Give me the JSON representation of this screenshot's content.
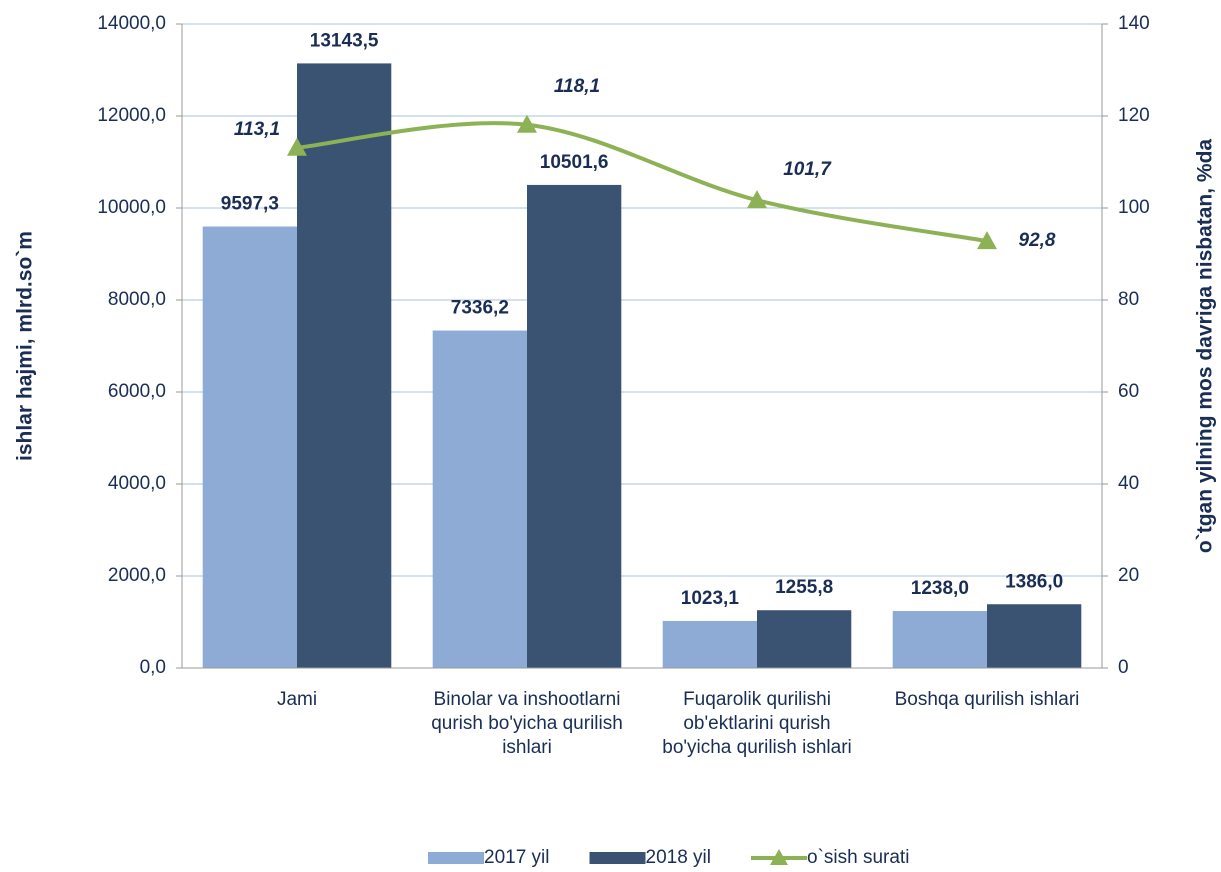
{
  "chart_data": {
    "type": "bar",
    "y_label": "ishlar hajmi, mlrd.so`m",
    "y2_label": "o`tgan yilning mos davriga nisbatan, %da",
    "categories": [
      "Jami",
      "Binolar va inshootlarni qurish bo'yicha qurilish ishlari",
      "Fuqarolik qurilishi ob'ektlarini qurish bo'yicha qurilish ishlari",
      "Boshqa qurilish ishlari"
    ],
    "series": [
      {
        "name": "2017 yil",
        "type": "bar",
        "color": "#8eabd5",
        "values": [
          9597.3,
          7336.2,
          1023.1,
          1238.0
        ],
        "value_labels": [
          "9597,3",
          "7336,2",
          "1023,1",
          "1238,0"
        ]
      },
      {
        "name": "2018 yil",
        "type": "bar",
        "color": "#3b5372",
        "values": [
          13143.5,
          10501.6,
          1255.8,
          1386.0
        ],
        "value_labels": [
          "13143,5",
          "10501,6",
          "1255,8",
          "1386,0"
        ]
      },
      {
        "name": "o`sish surati",
        "type": "line",
        "axis": "y2",
        "color": "#8db255",
        "values": [
          113.1,
          118.1,
          101.7,
          92.8
        ],
        "value_labels": [
          "113,1",
          "118,1",
          "101,7",
          "92,8"
        ]
      }
    ],
    "ylim": [
      0,
      14000
    ],
    "yticks": [
      {
        "value": 0,
        "label": "0,0"
      },
      {
        "value": 2000,
        "label": "2000,0"
      },
      {
        "value": 4000,
        "label": "4000,0"
      },
      {
        "value": 6000,
        "label": "6000,0"
      },
      {
        "value": 8000,
        "label": "8000,0"
      },
      {
        "value": 10000,
        "label": "10000,0"
      },
      {
        "value": 12000,
        "label": "12000,0"
      },
      {
        "value": 14000,
        "label": "14000,0"
      }
    ],
    "y2lim": [
      0,
      140
    ],
    "y2ticks": [
      0,
      20,
      40,
      60,
      80,
      100,
      120,
      140
    ],
    "grid": true,
    "legend": "bottom"
  }
}
